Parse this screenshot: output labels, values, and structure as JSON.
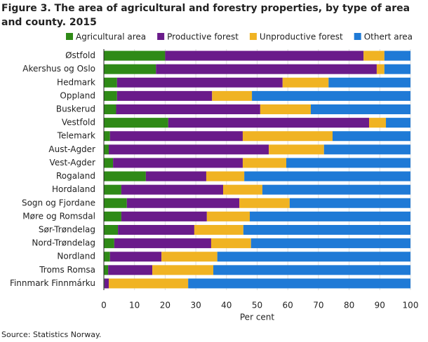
{
  "chart_data": {
    "type": "stacked_bar_horizontal",
    "title": "Figure 3. The area of agricultural and forestry properties, by type of area and county. 2015",
    "categories": [
      "Østfold",
      "Akershus og Oslo",
      "Hedmark",
      "Oppland",
      "Buskerud",
      "Vestfold",
      "Telemark",
      "Aust-Agder",
      "Vest-Agder",
      "Rogaland",
      "Hordaland",
      "Sogn og Fjordane",
      "Møre og Romsdal",
      "Sør-Trøndelag",
      "Nord-Trøndelag",
      "Nordland",
      "Troms Romsa",
      "Finnmark Finnmárku"
    ],
    "series": [
      {
        "name": "Agricultural area",
        "color": "#2f8a17",
        "values": [
          20,
          17,
          4.3,
          4.3,
          4,
          21,
          2,
          1.6,
          3,
          13.7,
          5.7,
          7.5,
          5.7,
          4.6,
          3.4,
          2,
          1.4,
          0.2
        ]
      },
      {
        "name": "Productive forest",
        "color": "#6a1b8a",
        "values": [
          64.7,
          72,
          54,
          31,
          47,
          65.5,
          43.3,
          52.2,
          42.3,
          19.7,
          33.2,
          36.7,
          27.9,
          24.9,
          31.6,
          16.8,
          14.4,
          1.4
        ]
      },
      {
        "name": "Unproductive forest",
        "color": "#f0b323",
        "values": [
          6.8,
          2.5,
          15,
          13,
          16.5,
          5.5,
          29.3,
          18,
          14.2,
          12.4,
          12.8,
          16.4,
          14,
          16,
          13,
          18.2,
          19.9,
          25.9
        ]
      },
      {
        "name": "Othert area",
        "color": "#1f7ad6",
        "values": [
          8.5,
          8.5,
          26.7,
          51.7,
          32.5,
          8,
          25.4,
          28.2,
          40.5,
          54.2,
          48.3,
          39.4,
          52.4,
          54.5,
          52,
          63,
          64.3,
          72.5
        ]
      }
    ],
    "xlabel": "Per cent",
    "xlim": [
      0,
      100
    ],
    "xticks": [
      0,
      10,
      20,
      30,
      40,
      50,
      60,
      70,
      80,
      90,
      100
    ],
    "grid": true,
    "source": "Source: Statistics Norway."
  }
}
